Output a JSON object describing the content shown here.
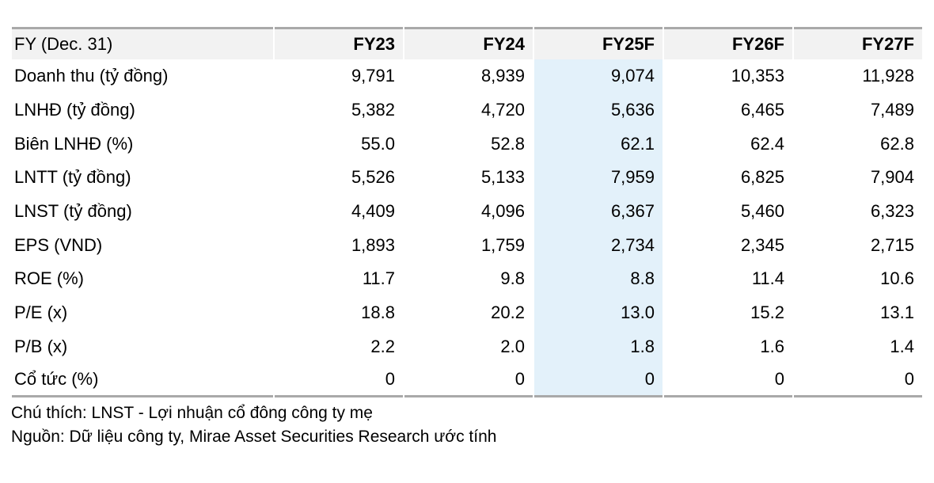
{
  "colors": {
    "header_bg": "#f2f2f2",
    "border": "#a9a9a9",
    "highlight": "#e3f1fa",
    "text": "#000000"
  },
  "table": {
    "header": {
      "label": "FY (Dec. 31)",
      "columns": [
        "FY23",
        "FY24",
        "FY25F",
        "FY26F",
        "FY27F"
      ],
      "highlight_column": "FY25F"
    },
    "rows": [
      {
        "label": "Doanh thu (tỷ đồng)",
        "values": [
          "9,791",
          "8,939",
          "9,074",
          "10,353",
          "11,928"
        ]
      },
      {
        "label": "LNHĐ (tỷ đồng)",
        "values": [
          "5,382",
          "4,720",
          "5,636",
          "6,465",
          "7,489"
        ]
      },
      {
        "label": "Biên LNHĐ (%)",
        "values": [
          "55.0",
          "52.8",
          "62.1",
          "62.4",
          "62.8"
        ]
      },
      {
        "label": "LNTT (tỷ đồng)",
        "values": [
          "5,526",
          "5,133",
          "7,959",
          "6,825",
          "7,904"
        ]
      },
      {
        "label": "LNST (tỷ đồng)",
        "values": [
          "4,409",
          "4,096",
          "6,367",
          "5,460",
          "6,323"
        ]
      },
      {
        "label": "EPS (VND)",
        "values": [
          "1,893",
          "1,759",
          "2,734",
          "2,345",
          "2,715"
        ]
      },
      {
        "label": "ROE (%)",
        "values": [
          "11.7",
          "9.8",
          "8.8",
          "11.4",
          "10.6"
        ]
      },
      {
        "label": "P/E (x)",
        "values": [
          "18.8",
          "20.2",
          "13.0",
          "15.2",
          "13.1"
        ]
      },
      {
        "label": "P/B (x)",
        "values": [
          "2.2",
          "2.0",
          "1.8",
          "1.6",
          "1.4"
        ]
      },
      {
        "label": "Cổ tức (%)",
        "values": [
          "0",
          "0",
          "0",
          "0",
          "0"
        ]
      }
    ]
  },
  "footnotes": {
    "note": "Chú thích: LNST - Lợi nhuận cổ đông công ty mẹ",
    "source": "Nguồn: Dữ liệu công ty, Mirae Asset Securities Research ước tính"
  }
}
